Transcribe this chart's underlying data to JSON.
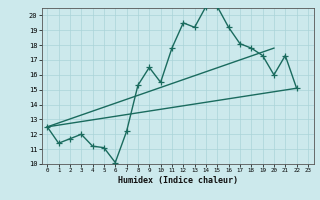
{
  "xlabel": "Humidex (Indice chaleur)",
  "xlim": [
    -0.5,
    23.5
  ],
  "ylim": [
    10,
    20.5
  ],
  "xticks": [
    0,
    1,
    2,
    3,
    4,
    5,
    6,
    7,
    8,
    9,
    10,
    11,
    12,
    13,
    14,
    15,
    16,
    17,
    18,
    19,
    20,
    21,
    22,
    23
  ],
  "yticks": [
    10,
    11,
    12,
    13,
    14,
    15,
    16,
    17,
    18,
    19,
    20
  ],
  "bg_color": "#cce9ec",
  "grid_color": "#aad4d8",
  "line_color": "#1a6b5e",
  "line1_x": [
    0,
    1,
    2,
    3,
    4,
    5,
    6,
    7,
    8,
    9,
    10,
    11,
    12,
    13,
    14,
    15,
    16,
    17,
    18,
    19,
    20,
    21,
    22
  ],
  "line1_y": [
    12.5,
    11.4,
    11.7,
    12.0,
    11.2,
    11.1,
    10.1,
    12.2,
    15.3,
    16.5,
    15.5,
    17.8,
    19.5,
    19.2,
    20.6,
    20.6,
    19.2,
    18.1,
    17.8,
    17.3,
    16.0,
    17.3,
    15.1
  ],
  "line2_x": [
    0,
    22
  ],
  "line2_y": [
    12.5,
    15.1
  ],
  "line3_x": [
    0,
    20
  ],
  "line3_y": [
    12.5,
    17.8
  ],
  "linewidth": 1.0
}
